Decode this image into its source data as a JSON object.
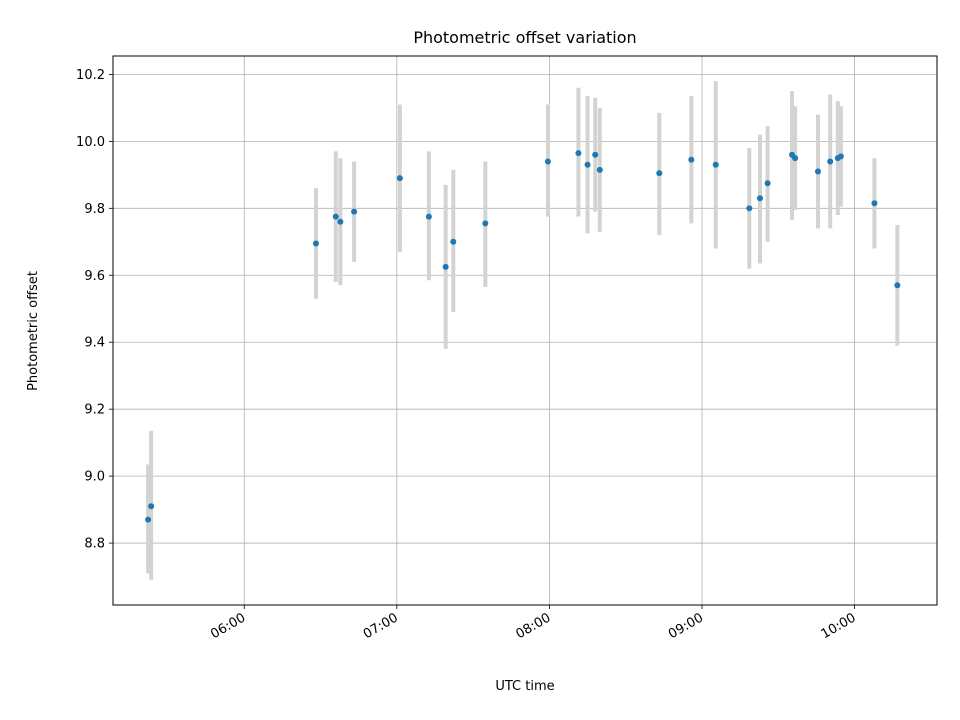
{
  "chart_data": {
    "type": "scatter",
    "title": "Photometric offset variation",
    "xlabel": "UTC time",
    "ylabel": "Photometric offset",
    "xlim_hours": [
      5.14,
      10.54
    ],
    "ylim": [
      8.615,
      10.255
    ],
    "grid": true,
    "xticks": [
      {
        "value": 6.0,
        "label": "06:00"
      },
      {
        "value": 7.0,
        "label": "07:00"
      },
      {
        "value": 8.0,
        "label": "08:00"
      },
      {
        "value": 9.0,
        "label": "09:00"
      },
      {
        "value": 10.0,
        "label": "10:00"
      }
    ],
    "yticks": [
      {
        "value": 8.8,
        "label": "8.8"
      },
      {
        "value": 9.0,
        "label": "9.0"
      },
      {
        "value": 9.2,
        "label": "9.2"
      },
      {
        "value": 9.4,
        "label": "9.4"
      },
      {
        "value": 9.6,
        "label": "9.6"
      },
      {
        "value": 9.8,
        "label": "9.8"
      },
      {
        "value": 10.0,
        "label": "10.0"
      },
      {
        "value": 10.2,
        "label": "10.2"
      }
    ],
    "point_color": "#1f77b4",
    "errorbar_color": "#d3d3d3",
    "points": [
      {
        "t": 5.37,
        "y": 8.87,
        "lo": 8.71,
        "hi": 9.035
      },
      {
        "t": 5.39,
        "y": 8.91,
        "lo": 8.69,
        "hi": 9.135
      },
      {
        "t": 6.47,
        "y": 9.695,
        "lo": 9.53,
        "hi": 9.86
      },
      {
        "t": 6.6,
        "y": 9.775,
        "lo": 9.58,
        "hi": 9.97
      },
      {
        "t": 6.63,
        "y": 9.76,
        "lo": 9.57,
        "hi": 9.95
      },
      {
        "t": 6.72,
        "y": 9.79,
        "lo": 9.64,
        "hi": 9.94
      },
      {
        "t": 7.02,
        "y": 9.89,
        "lo": 9.67,
        "hi": 10.11
      },
      {
        "t": 7.21,
        "y": 9.775,
        "lo": 9.585,
        "hi": 9.97
      },
      {
        "t": 7.32,
        "y": 9.625,
        "lo": 9.38,
        "hi": 9.87
      },
      {
        "t": 7.37,
        "y": 9.7,
        "lo": 9.49,
        "hi": 9.915
      },
      {
        "t": 7.58,
        "y": 9.755,
        "lo": 9.565,
        "hi": 9.94
      },
      {
        "t": 7.99,
        "y": 9.94,
        "lo": 9.775,
        "hi": 10.11
      },
      {
        "t": 8.19,
        "y": 9.965,
        "lo": 9.775,
        "hi": 10.16
      },
      {
        "t": 8.25,
        "y": 9.93,
        "lo": 9.725,
        "hi": 10.135
      },
      {
        "t": 8.3,
        "y": 9.96,
        "lo": 9.79,
        "hi": 10.13
      },
      {
        "t": 8.33,
        "y": 9.915,
        "lo": 9.73,
        "hi": 10.1
      },
      {
        "t": 8.72,
        "y": 9.905,
        "lo": 9.72,
        "hi": 10.085
      },
      {
        "t": 8.93,
        "y": 9.945,
        "lo": 9.755,
        "hi": 10.135
      },
      {
        "t": 9.09,
        "y": 9.93,
        "lo": 9.68,
        "hi": 10.18
      },
      {
        "t": 9.31,
        "y": 9.8,
        "lo": 9.62,
        "hi": 9.98
      },
      {
        "t": 9.38,
        "y": 9.83,
        "lo": 9.635,
        "hi": 10.02
      },
      {
        "t": 9.43,
        "y": 9.875,
        "lo": 9.7,
        "hi": 10.045
      },
      {
        "t": 9.59,
        "y": 9.96,
        "lo": 9.765,
        "hi": 10.15
      },
      {
        "t": 9.61,
        "y": 9.95,
        "lo": 9.795,
        "hi": 10.105
      },
      {
        "t": 9.76,
        "y": 9.91,
        "lo": 9.74,
        "hi": 10.08
      },
      {
        "t": 9.84,
        "y": 9.94,
        "lo": 9.74,
        "hi": 10.14
      },
      {
        "t": 9.89,
        "y": 9.95,
        "lo": 9.78,
        "hi": 10.12
      },
      {
        "t": 9.91,
        "y": 9.955,
        "lo": 9.805,
        "hi": 10.105
      },
      {
        "t": 10.13,
        "y": 9.815,
        "lo": 9.68,
        "hi": 9.95
      },
      {
        "t": 10.28,
        "y": 9.57,
        "lo": 9.39,
        "hi": 9.75
      }
    ]
  }
}
